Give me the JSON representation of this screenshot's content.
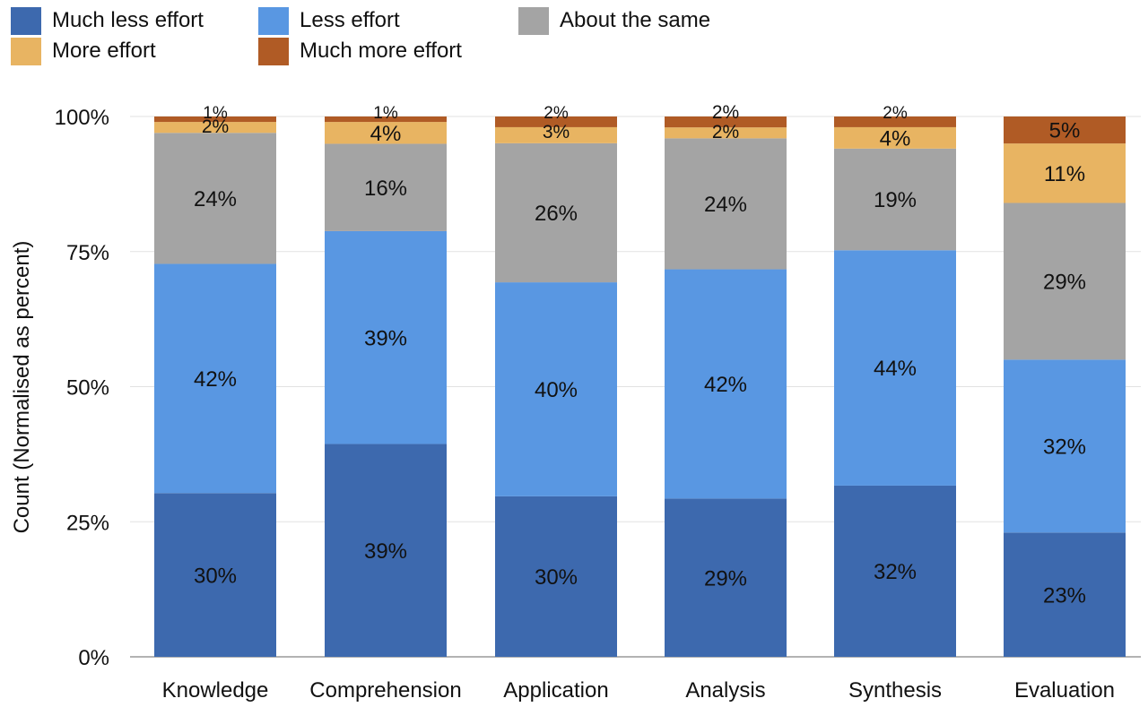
{
  "chart_data": {
    "type": "bar",
    "stacked": true,
    "title": "",
    "xlabel": "",
    "ylabel": "Count (Normalised as percent)",
    "ylim": [
      0,
      100
    ],
    "yticks": [
      "0%",
      "25%",
      "50%",
      "75%",
      "100%"
    ],
    "grid": true,
    "legend_position": "top-left",
    "categories": [
      "Knowledge",
      "Comprehension",
      "Application",
      "Analysis",
      "Synthesis",
      "Evaluation"
    ],
    "series": [
      {
        "name": "Much less effort",
        "color": "#3d69ae",
        "values": [
          30,
          39,
          30,
          29,
          32,
          23
        ],
        "labels": [
          "30%",
          "39%",
          "30%",
          "29%",
          "32%",
          "23%"
        ]
      },
      {
        "name": "Less effort",
        "color": "#5997e2",
        "values": [
          42,
          39,
          40,
          42,
          44,
          32
        ],
        "labels": [
          "42%",
          "39%",
          "40%",
          "42%",
          "44%",
          "32%"
        ]
      },
      {
        "name": "About the same",
        "color": "#a4a4a4",
        "values": [
          24,
          16,
          26,
          24,
          19,
          29
        ],
        "labels": [
          "24%",
          "16%",
          "26%",
          "24%",
          "19%",
          "29%"
        ]
      },
      {
        "name": "More effort",
        "color": "#e8b462",
        "values": [
          2,
          4,
          3,
          2,
          4,
          11
        ],
        "labels": [
          "2%",
          "4%",
          "3%",
          "2%",
          "4%",
          "11%"
        ]
      },
      {
        "name": "Much more effort",
        "color": "#b05b25",
        "values": [
          1,
          1,
          2,
          2,
          2,
          5
        ],
        "labels": [
          "1%",
          "1%",
          "2%",
          "2%",
          "2%",
          "5%"
        ]
      }
    ]
  }
}
